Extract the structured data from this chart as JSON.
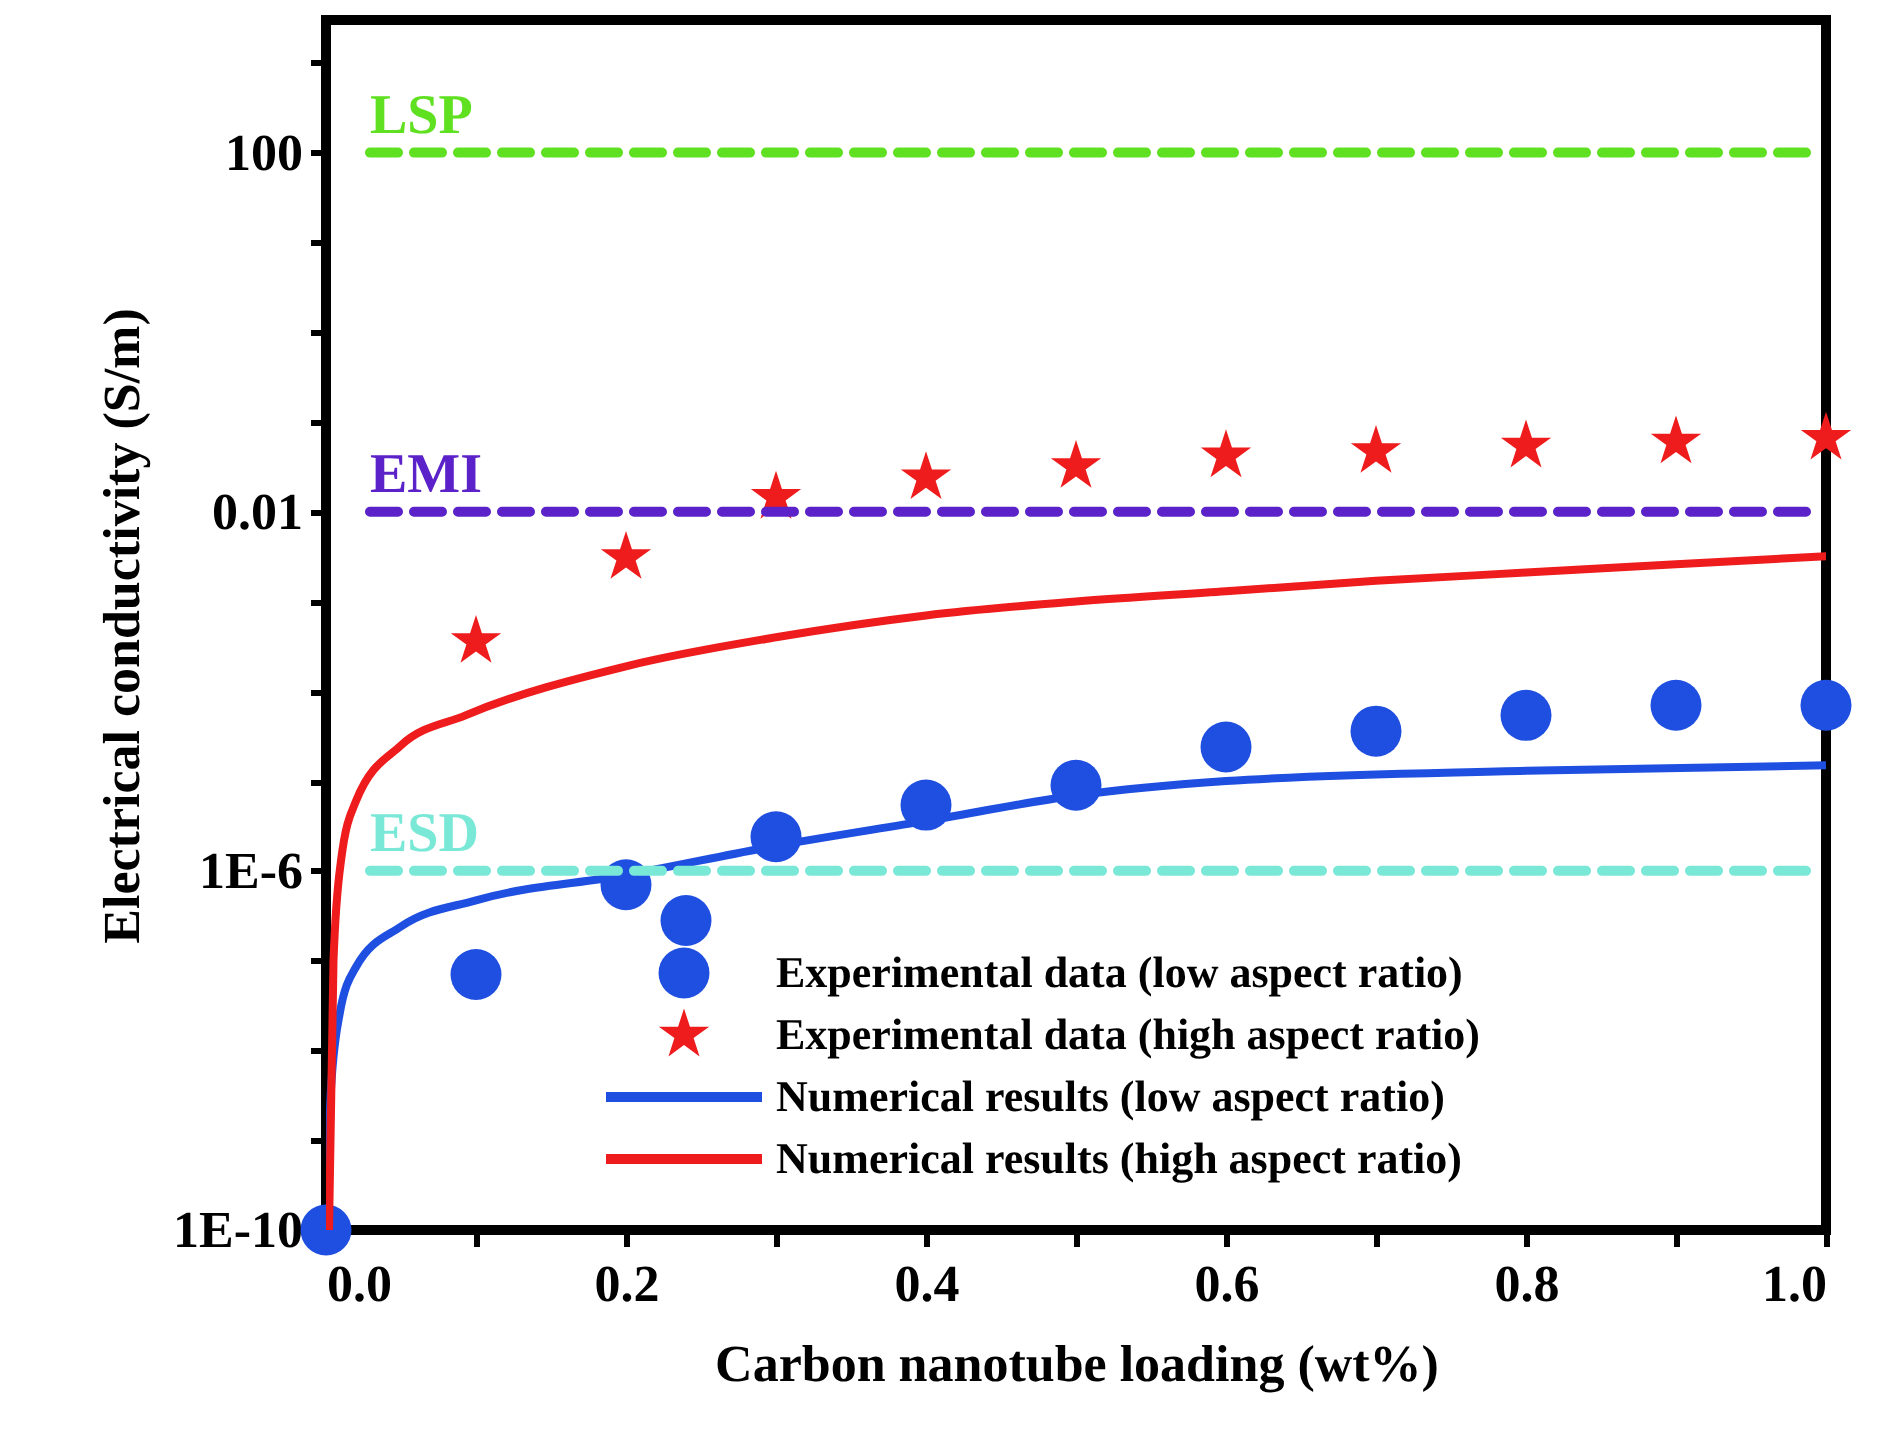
{
  "chart_data": {
    "type": "scatter",
    "xlabel": "Carbon nanotube loading (wt%)",
    "ylabel": "Electrical conductivity (S/m)",
    "log": "y",
    "grid": false,
    "legend": "bottom right",
    "xlim": [
      0,
      1
    ],
    "ylim": [
      1e-10,
      3000
    ],
    "xticks": [
      {
        "value": 0,
        "label": "0.0"
      },
      {
        "value": 0.1,
        "label": null
      },
      {
        "value": 0.2,
        "label": "0.2"
      },
      {
        "value": 0.3,
        "label": null
      },
      {
        "value": 0.4,
        "label": "0.4"
      },
      {
        "value": 0.5,
        "label": null
      },
      {
        "value": 0.6,
        "label": "0.6"
      },
      {
        "value": 0.7,
        "label": null
      },
      {
        "value": 0.8,
        "label": "0.8"
      },
      {
        "value": 0.9,
        "label": null
      },
      {
        "value": 1,
        "label": "1.0"
      }
    ],
    "yticks": [
      {
        "value": 1e-10,
        "label": "1E-10"
      },
      {
        "value": 1e-09,
        "label": null
      },
      {
        "value": 1e-08,
        "label": null
      },
      {
        "value": 1e-07,
        "label": null
      },
      {
        "value": 1e-06,
        "label": "1E-6"
      },
      {
        "value": 1e-05,
        "label": null
      },
      {
        "value": 0.0001,
        "label": null
      },
      {
        "value": 0.001,
        "label": null
      },
      {
        "value": 0.01,
        "label": "0.01"
      },
      {
        "value": 0.1,
        "label": null
      },
      {
        "value": 1,
        "label": null
      },
      {
        "value": 10,
        "label": null
      },
      {
        "value": 100,
        "label": "100"
      },
      {
        "value": 1000,
        "label": null
      }
    ],
    "ref_lines": [
      {
        "axis": "y",
        "value": 100,
        "label": "LSP",
        "color": "#5fe020",
        "line_style": "dashed"
      },
      {
        "axis": "y",
        "value": 0.01,
        "label": "EMI",
        "color": "#5a22c8",
        "line_style": "dashed"
      },
      {
        "axis": "y",
        "value": 1e-06,
        "label": "ESD",
        "color": "#7ae8d6",
        "line_style": "dashed"
      }
    ],
    "series": [
      {
        "name": "Experimental data (low aspect ratio)",
        "type": "scatter",
        "marker": "circle",
        "color": "#1f4fe0",
        "x": [
          0,
          0.1,
          0.2,
          0.24,
          0.3,
          0.4,
          0.5,
          0.6,
          0.7,
          0.8,
          0.9,
          1.0
        ],
        "values": [
          1e-10,
          7e-08,
          7e-07,
          2.8e-07,
          2.4e-06,
          5.4e-06,
          9e-06,
          2.4e-05,
          3.6e-05,
          5.4e-05,
          7e-05,
          7e-05
        ]
      },
      {
        "name": "Experimental data (high aspect ratio)",
        "type": "scatter",
        "marker": "star",
        "color": "#ee1c1c",
        "x": [
          0.1,
          0.2,
          0.3,
          0.4,
          0.5,
          0.6,
          0.7,
          0.8,
          0.9,
          1.0
        ],
        "values": [
          0.00036,
          0.0031,
          0.0145,
          0.024,
          0.032,
          0.042,
          0.047,
          0.054,
          0.06,
          0.066
        ]
      },
      {
        "name": "Numerical results (low aspect ratio)",
        "type": "line",
        "line_style": "solid",
        "color": "#1f4fe0",
        "x": [
          0.001,
          0.003,
          0.009,
          0.02,
          0.05,
          0.1,
          0.2,
          0.3,
          0.4,
          0.5,
          0.6,
          0.8,
          1.0
        ],
        "values": [
          1e-10,
          3e-09,
          2.5e-08,
          8.5e-08,
          2.4e-07,
          4.7e-07,
          9e-07,
          1.9e-06,
          3.6e-06,
          6.9e-06,
          1e-05,
          1.3e-05,
          1.5e-05
        ]
      },
      {
        "name": "Numerical results (high aspect ratio)",
        "type": "line",
        "line_style": "solid",
        "color": "#ee1c1c",
        "x": [
          0.002,
          0.005,
          0.01,
          0.02,
          0.05,
          0.093,
          0.2,
          0.3,
          0.4,
          0.5,
          0.6,
          0.7,
          0.8,
          0.9,
          1.0
        ],
        "values": [
          1e-10,
          1e-07,
          1.3e-06,
          6e-06,
          2.5e-05,
          5.4e-05,
          0.00019,
          0.0004,
          0.0007,
          0.001,
          0.0013,
          0.0017,
          0.0021,
          0.0026,
          0.0032
        ]
      }
    ]
  }
}
